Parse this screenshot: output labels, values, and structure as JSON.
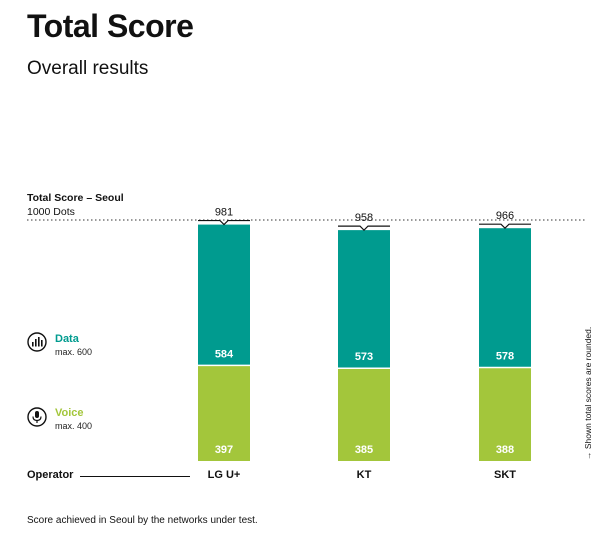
{
  "chart_data": {
    "type": "bar",
    "stacked": true,
    "title": "Total Score",
    "subtitle": "Overall results",
    "ylabel": "Total Score – Seoul",
    "ylabel_sub": "1000 Dots",
    "xlabel": "Operator",
    "ylim": [
      0,
      1000
    ],
    "reference_line": 1000,
    "categories": [
      "LG U+",
      "KT",
      "SKT"
    ],
    "series": [
      {
        "name": "Voice",
        "max_label": "max. 400",
        "color": "#a3c63b",
        "values": [
          397,
          385,
          388
        ]
      },
      {
        "name": "Data",
        "max_label": "max. 600",
        "color": "#009b8f",
        "values": [
          584,
          573,
          578
        ]
      }
    ],
    "totals": [
      981,
      958,
      966
    ],
    "footnote": "Score achieved in Seoul by the networks under test.",
    "side_note": "→ Shown total scores are rounded."
  },
  "legend": {
    "data_icon": "signal-bars-icon",
    "voice_icon": "microphone-icon"
  }
}
